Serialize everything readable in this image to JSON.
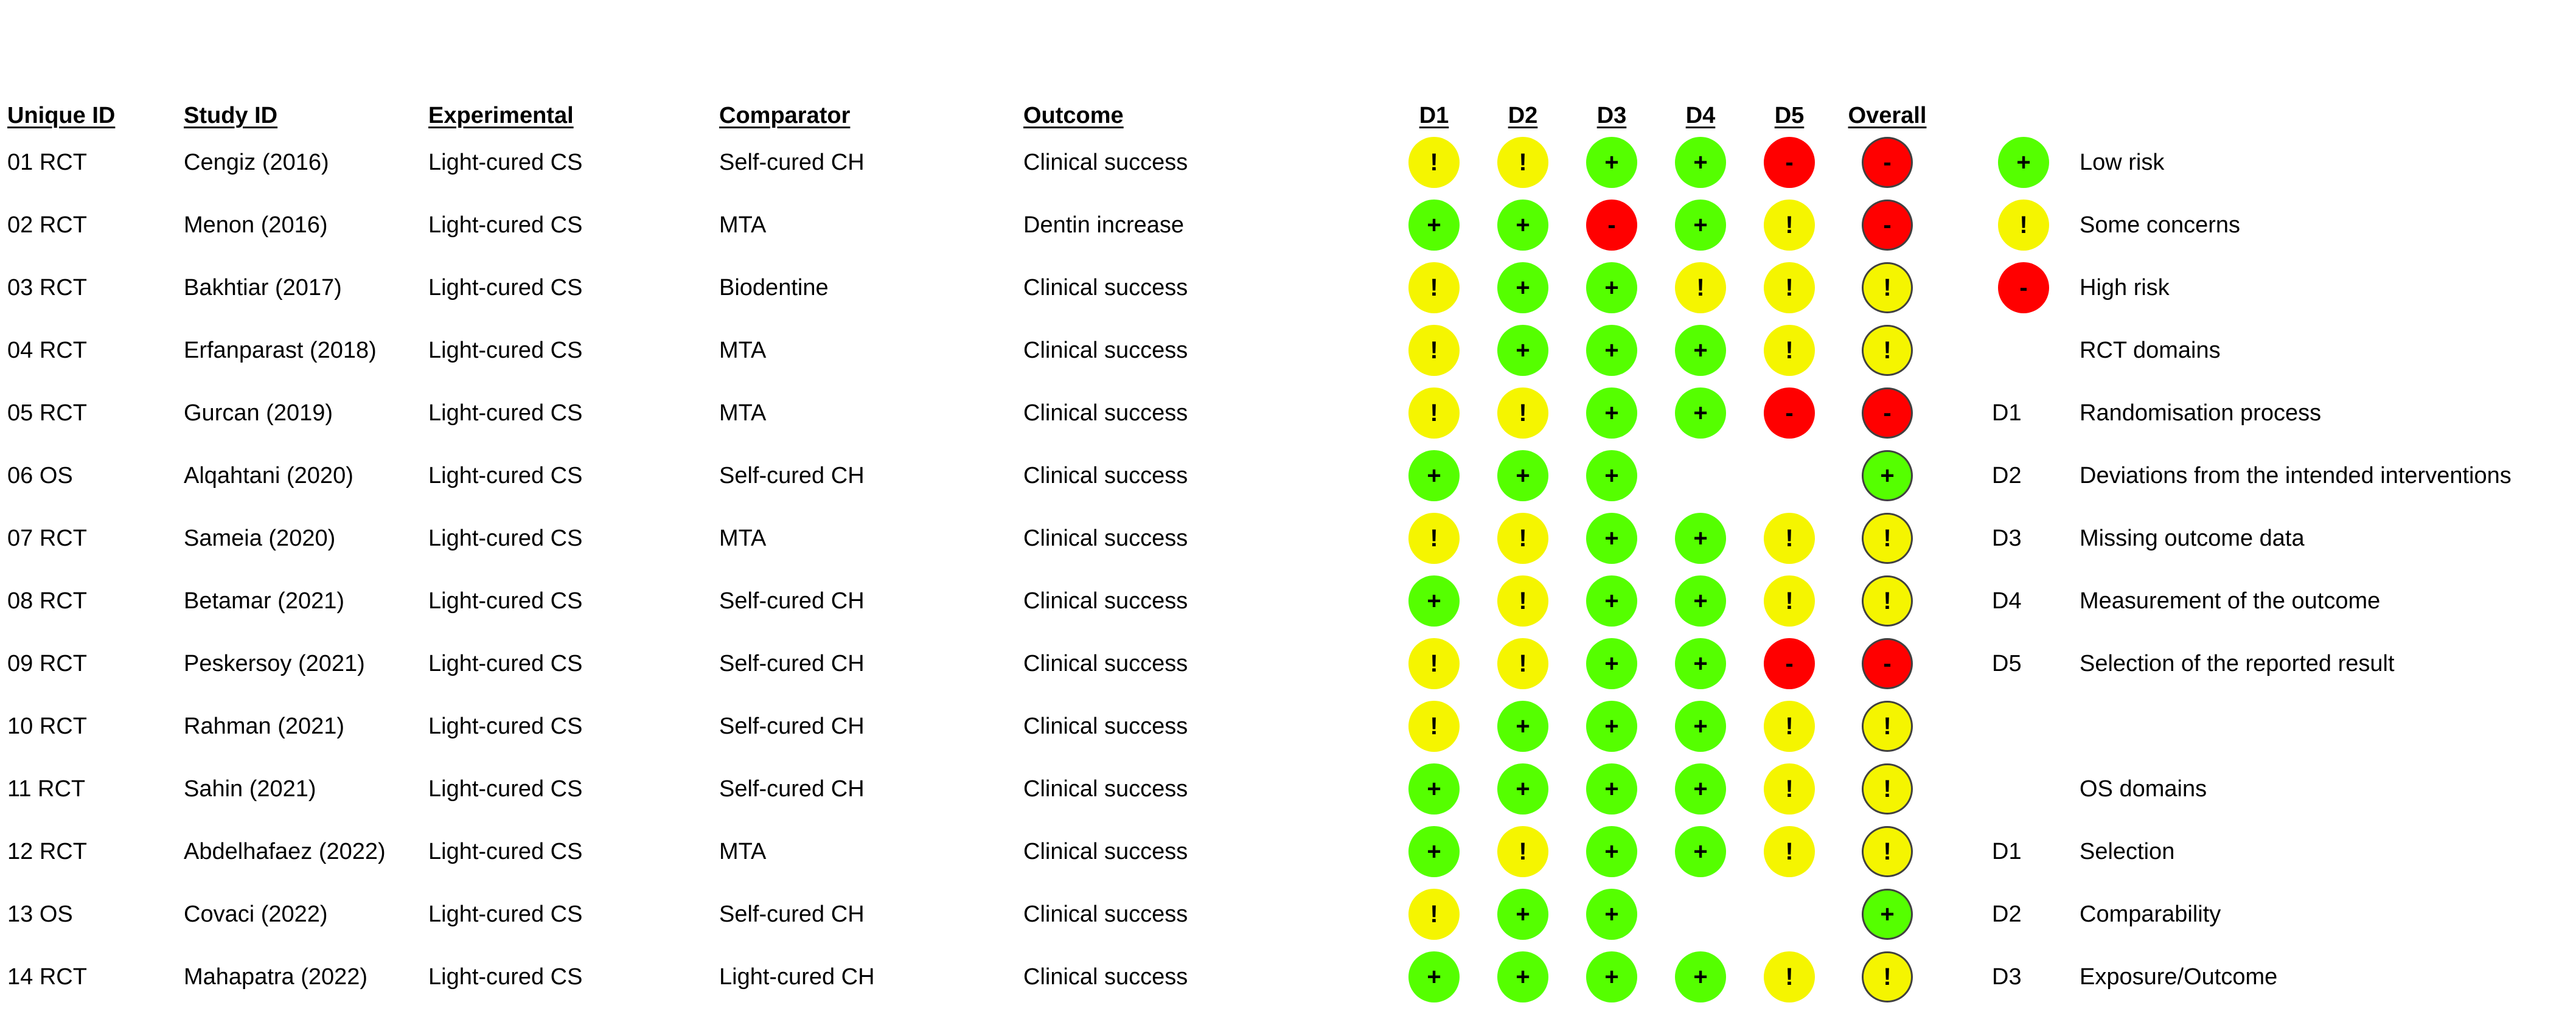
{
  "headers": {
    "unique_id": "Unique ID",
    "study_id": "Study ID",
    "experimental": "Experimental",
    "comparator": "Comparator",
    "outcome": "Outcome",
    "d1": "D1",
    "d2": "D2",
    "d3": "D3",
    "d4": "D4",
    "d5": "D5",
    "overall": "Overall"
  },
  "colors": {
    "low": "#55ff00",
    "some": "#f5f500",
    "high": "#ff0000"
  },
  "symbols": {
    "low": "+",
    "some": "!",
    "high": "-"
  },
  "rows": [
    {
      "unique_id": "01 RCT",
      "study_id": "Cengiz (2016)",
      "experimental": "Light-cured CS",
      "comparator": "Self-cured CH",
      "outcome": "Clinical success",
      "domains": [
        "some",
        "some",
        "low",
        "low",
        "high"
      ],
      "overall": "high"
    },
    {
      "unique_id": "02 RCT",
      "study_id": "Menon (2016)",
      "experimental": "Light-cured CS",
      "comparator": "MTA",
      "outcome": "Dentin increase",
      "domains": [
        "low",
        "low",
        "high",
        "low",
        "some"
      ],
      "overall": "high"
    },
    {
      "unique_id": "03 RCT",
      "study_id": "Bakhtiar (2017)",
      "experimental": "Light-cured CS",
      "comparator": "Biodentine",
      "outcome": "Clinical success",
      "domains": [
        "some",
        "low",
        "low",
        "some",
        "some"
      ],
      "overall": "some"
    },
    {
      "unique_id": "04 RCT",
      "study_id": "Erfanparast (2018)",
      "experimental": "Light-cured CS",
      "comparator": "MTA",
      "outcome": "Clinical success",
      "domains": [
        "some",
        "low",
        "low",
        "low",
        "some"
      ],
      "overall": "some"
    },
    {
      "unique_id": "05 RCT",
      "study_id": "Gurcan (2019)",
      "experimental": "Light-cured CS",
      "comparator": "MTA",
      "outcome": "Clinical success",
      "domains": [
        "some",
        "some",
        "low",
        "low",
        "high"
      ],
      "overall": "high"
    },
    {
      "unique_id": "06 OS",
      "study_id": "Alqahtani (2020)",
      "experimental": "Light-cured CS",
      "comparator": "Self-cured CH",
      "outcome": "Clinical success",
      "domains": [
        "low",
        "low",
        "low",
        null,
        null
      ],
      "overall": "low"
    },
    {
      "unique_id": "07 RCT",
      "study_id": "Sameia (2020)",
      "experimental": "Light-cured CS",
      "comparator": "MTA",
      "outcome": "Clinical success",
      "domains": [
        "some",
        "some",
        "low",
        "low",
        "some"
      ],
      "overall": "some"
    },
    {
      "unique_id": "08 RCT",
      "study_id": "Betamar (2021)",
      "experimental": "Light-cured CS",
      "comparator": "Self-cured CH",
      "outcome": "Clinical success",
      "domains": [
        "low",
        "some",
        "low",
        "low",
        "some"
      ],
      "overall": "some"
    },
    {
      "unique_id": "09 RCT",
      "study_id": "Peskersoy (2021)",
      "experimental": "Light-cured CS",
      "comparator": "Self-cured CH",
      "outcome": "Clinical success",
      "domains": [
        "some",
        "some",
        "low",
        "low",
        "high"
      ],
      "overall": "high"
    },
    {
      "unique_id": "10 RCT",
      "study_id": "Rahman (2021)",
      "experimental": "Light-cured CS",
      "comparator": "Self-cured CH",
      "outcome": "Clinical success",
      "domains": [
        "some",
        "low",
        "low",
        "low",
        "some"
      ],
      "overall": "some"
    },
    {
      "unique_id": "11 RCT",
      "study_id": "Sahin (2021)",
      "experimental": "Light-cured CS",
      "comparator": "Self-cured CH",
      "outcome": "Clinical success",
      "domains": [
        "low",
        "low",
        "low",
        "low",
        "some"
      ],
      "overall": "some"
    },
    {
      "unique_id": "12 RCT",
      "study_id": "Abdelhafaez (2022)",
      "experimental": "Light-cured CS",
      "comparator": "MTA",
      "outcome": "Clinical success",
      "domains": [
        "low",
        "some",
        "low",
        "low",
        "some"
      ],
      "overall": "some"
    },
    {
      "unique_id": "13 OS",
      "study_id": "Covaci (2022)",
      "experimental": "Light-cured CS",
      "comparator": "Self-cured CH",
      "outcome": "Clinical success",
      "domains": [
        "some",
        "low",
        "low",
        null,
        null
      ],
      "overall": "low"
    },
    {
      "unique_id": "14 RCT",
      "study_id": "Mahapatra (2022)",
      "experimental": "Light-cured CS",
      "comparator": "Light-cured CH",
      "outcome": "Clinical success",
      "domains": [
        "low",
        "low",
        "low",
        "low",
        "some"
      ],
      "overall": "some"
    }
  ],
  "legend": {
    "judgements": [
      {
        "level": "low",
        "label": "Low risk"
      },
      {
        "level": "some",
        "label": "Some concerns"
      },
      {
        "level": "high",
        "label": "High risk"
      }
    ],
    "rct_title": "RCT domains",
    "rct_domains": [
      {
        "code": "D1",
        "label": "Randomisation process"
      },
      {
        "code": "D2",
        "label": "Deviations from the intended interventions"
      },
      {
        "code": "D3",
        "label": "Missing outcome data"
      },
      {
        "code": "D4",
        "label": "Measurement of the outcome"
      },
      {
        "code": "D5",
        "label": "Selection of the reported result"
      }
    ],
    "os_title": "OS domains",
    "os_domains": [
      {
        "code": "D1",
        "label": "Selection"
      },
      {
        "code": "D2",
        "label": "Comparability"
      },
      {
        "code": "D3",
        "label": "Exposure/Outcome"
      }
    ]
  }
}
